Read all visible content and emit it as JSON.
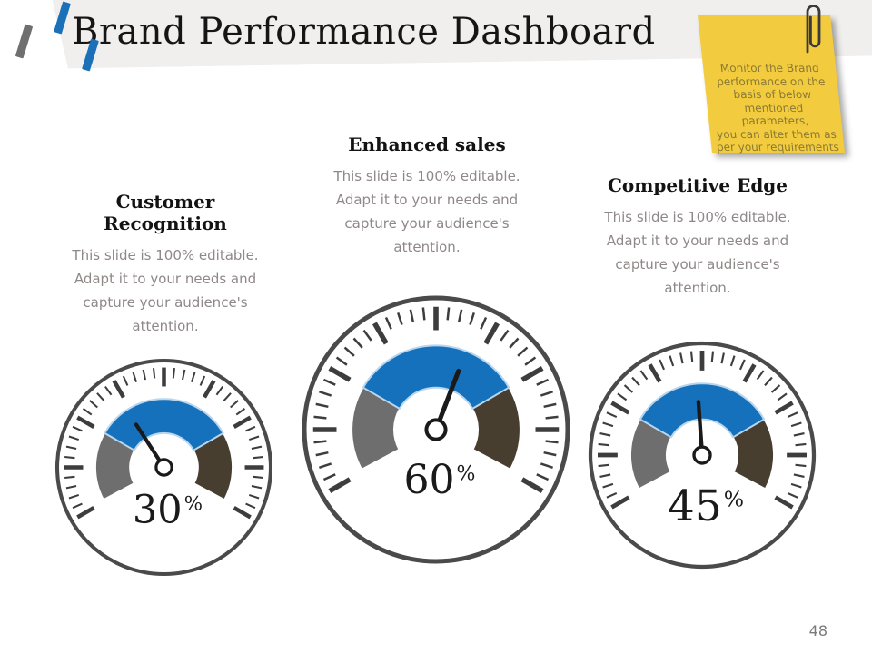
{
  "slide": {
    "title": "Brand Performance Dashboard",
    "page_number": "48"
  },
  "sticky_note": {
    "lines": [
      "Monitor the Brand",
      "performance on the",
      "basis of below",
      "mentioned parameters,",
      "you can alter them as",
      "per your requirements"
    ],
    "bg_color": "#F2CB3E",
    "text_color": "#8A7A34",
    "paperclip_icon": "paperclip"
  },
  "logo": {
    "bar_colors": [
      "#6F6F6F",
      "#1C70B8",
      "#1C70B8"
    ]
  },
  "theme": {
    "band_bg": "#F0EFEE",
    "accent_blue": "#1571BB",
    "gauge_gray": "#6E6E6E",
    "gauge_dark": "#483E30",
    "heading_text": "#131313",
    "body_text": "#8F8888",
    "page_number_color": "#7A7A7A"
  },
  "chart_data": [
    {
      "type": "gauge",
      "title": "Customer Recognition",
      "subtitle_lines": [
        "This slide is 100% editable.",
        "Adapt it to your needs and",
        "capture your audience's",
        "attention."
      ],
      "value": 30,
      "unit": "%",
      "min": 0,
      "max": 100,
      "needle_angle_deg": -33,
      "dial_start_deg": -120,
      "dial_end_deg": 120,
      "segments": [
        {
          "label": "low",
          "color": "#6E6E6E",
          "from_deg": -118,
          "to_deg": -60
        },
        {
          "label": "mid",
          "color": "#1571BB",
          "from_deg": -60,
          "to_deg": 60
        },
        {
          "label": "high",
          "color": "#483E30",
          "from_deg": 60,
          "to_deg": 118
        }
      ]
    },
    {
      "type": "gauge",
      "title": "Enhanced sales",
      "subtitle_lines": [
        "This slide is 100% editable.",
        "Adapt it to your needs and",
        "capture your audience's",
        "attention."
      ],
      "value": 60,
      "unit": "%",
      "min": 0,
      "max": 100,
      "needle_angle_deg": 21,
      "dial_start_deg": -120,
      "dial_end_deg": 120,
      "segments": [
        {
          "label": "low",
          "color": "#6E6E6E",
          "from_deg": -118,
          "to_deg": -60
        },
        {
          "label": "mid",
          "color": "#1571BB",
          "from_deg": -60,
          "to_deg": 60
        },
        {
          "label": "high",
          "color": "#483E30",
          "from_deg": 60,
          "to_deg": 118
        }
      ]
    },
    {
      "type": "gauge",
      "title": "Competitive Edge",
      "subtitle_lines": [
        "This slide is 100% editable.",
        "Adapt it to your needs and",
        "capture your audience's",
        "attention."
      ],
      "value": 45,
      "unit": "%",
      "min": 0,
      "max": 100,
      "needle_angle_deg": -4,
      "dial_start_deg": -120,
      "dial_end_deg": 120,
      "segments": [
        {
          "label": "low",
          "color": "#6E6E6E",
          "from_deg": -118,
          "to_deg": -60
        },
        {
          "label": "mid",
          "color": "#1571BB",
          "from_deg": -60,
          "to_deg": 60
        },
        {
          "label": "high",
          "color": "#483E30",
          "from_deg": 60,
          "to_deg": 118
        }
      ]
    }
  ]
}
